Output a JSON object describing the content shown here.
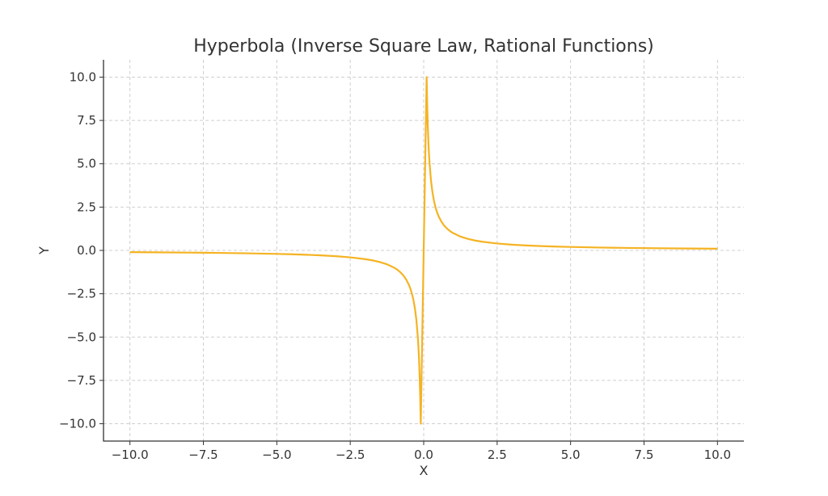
{
  "chart_data": {
    "type": "line",
    "title": "Hyperbola (Inverse Square Law, Rational Functions)",
    "xlabel": "X",
    "ylabel": "Y",
    "xlim": [
      -10.9,
      10.9
    ],
    "ylim": [
      -11.0,
      11.0
    ],
    "grid": true,
    "x_ticks": [
      -10.0,
      -7.5,
      -5.0,
      -2.5,
      0.0,
      2.5,
      5.0,
      7.5,
      10.0
    ],
    "y_ticks": [
      -10.0,
      -7.5,
      -5.0,
      -2.5,
      0.0,
      2.5,
      5.0,
      7.5,
      10.0
    ],
    "x_tick_labels": [
      "−10.0",
      "−7.5",
      "−5.0",
      "−2.5",
      "0.0",
      "2.5",
      "5.0",
      "7.5",
      "10.0"
    ],
    "y_tick_labels": [
      "−10.0",
      "−7.5",
      "−5.0",
      "−2.5",
      "0.0",
      "2.5",
      "5.0",
      "7.5",
      "10.0"
    ],
    "series": [
      {
        "color": "#f5b323",
        "x": [
          -10.0,
          -9.0,
          -8.0,
          -7.0,
          -6.0,
          -5.0,
          -4.5,
          -4.0,
          -3.5,
          -3.0,
          -2.5,
          -2.0,
          -1.75,
          -1.5,
          -1.25,
          -1.0,
          -0.9,
          -0.8,
          -0.7,
          -0.6,
          -0.5,
          -0.45,
          -0.4,
          -0.35,
          -0.3,
          -0.25,
          -0.2,
          -0.18,
          -0.16,
          -0.14,
          -0.12,
          -0.1,
          -0.1,
          0.1,
          0.1,
          0.12,
          0.14,
          0.16,
          0.18,
          0.2,
          0.25,
          0.3,
          0.35,
          0.4,
          0.45,
          0.5,
          0.6,
          0.7,
          0.8,
          0.9,
          1.0,
          1.25,
          1.5,
          1.75,
          2.0,
          2.5,
          3.0,
          3.5,
          4.0,
          4.5,
          5.0,
          6.0,
          7.0,
          8.0,
          9.0,
          10.0
        ],
        "y": [
          -0.1,
          -0.111,
          -0.125,
          -0.143,
          -0.167,
          -0.2,
          -0.222,
          -0.25,
          -0.286,
          -0.333,
          -0.4,
          -0.5,
          -0.571,
          -0.667,
          -0.8,
          -1.0,
          -1.111,
          -1.25,
          -1.429,
          -1.667,
          -2.0,
          -2.222,
          -2.5,
          -2.857,
          -3.333,
          -4.0,
          -5.0,
          -5.556,
          -6.25,
          -7.143,
          -8.333,
          -10.0,
          -10.0,
          10.0,
          10.0,
          8.333,
          7.143,
          6.25,
          5.556,
          5.0,
          4.0,
          3.333,
          2.857,
          2.5,
          2.222,
          2.0,
          1.667,
          1.429,
          1.25,
          1.111,
          1.0,
          0.8,
          0.667,
          0.571,
          0.5,
          0.4,
          0.333,
          0.286,
          0.25,
          0.222,
          0.2,
          0.167,
          0.143,
          0.125,
          0.111,
          0.1
        ]
      }
    ]
  }
}
